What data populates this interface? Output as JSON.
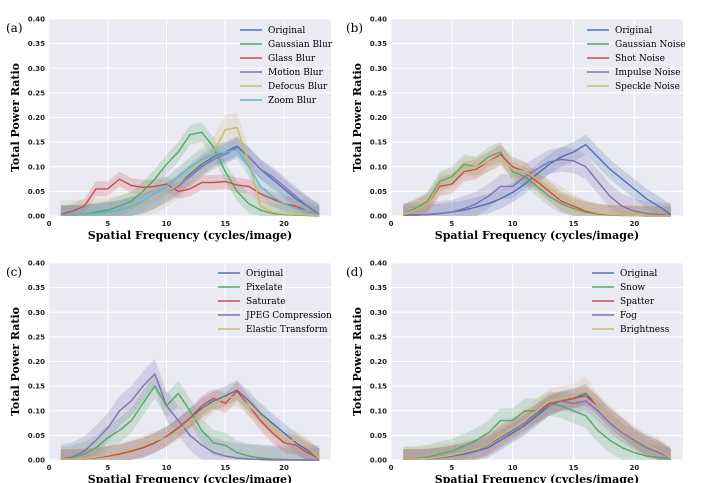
{
  "colors": {
    "blue": "#4C72B0",
    "green": "#55A868",
    "red": "#C44E52",
    "purple": "#8172B3",
    "gold": "#CCB974",
    "cyan": "#64B5CD",
    "plot_bg": "#EAEAF2",
    "grid": "#FFFFFF"
  },
  "chart_data": [
    {
      "type": "line",
      "panel_label": "(a)",
      "xlabel": "Spatial Frequency (cycles/image)",
      "ylabel": "Total Power Ratio",
      "xlim": [
        0,
        24
      ],
      "ylim": [
        0,
        0.4
      ],
      "xticks": [
        0,
        5,
        10,
        15,
        20
      ],
      "yticks": [
        0.0,
        0.05,
        0.1,
        0.15,
        0.2,
        0.25,
        0.3,
        0.35,
        0.4
      ],
      "grid": true,
      "legend_position": "top-right",
      "x": [
        1,
        2,
        3,
        4,
        5,
        6,
        7,
        8,
        9,
        10,
        11,
        12,
        13,
        14,
        15,
        16,
        17,
        18,
        19,
        20,
        21,
        22,
        23
      ],
      "series": [
        {
          "name": "Original",
          "color": "#4C72B0",
          "band": 0.02,
          "values": [
            0.002,
            0.002,
            0.003,
            0.005,
            0.008,
            0.012,
            0.018,
            0.025,
            0.035,
            0.048,
            0.065,
            0.085,
            0.105,
            0.12,
            0.13,
            0.142,
            0.12,
            0.095,
            0.075,
            0.055,
            0.035,
            0.02,
            0.003
          ]
        },
        {
          "name": "Gaussian Blur",
          "color": "#55A868",
          "band": 0.02,
          "values": [
            0.002,
            0.002,
            0.004,
            0.008,
            0.012,
            0.02,
            0.03,
            0.05,
            0.075,
            0.105,
            0.13,
            0.165,
            0.17,
            0.14,
            0.09,
            0.05,
            0.025,
            0.012,
            0.005,
            0.003,
            0.002,
            0.001,
            0.0
          ]
        },
        {
          "name": "Glass Blur",
          "color": "#C44E52",
          "band": 0.015,
          "values": [
            0.003,
            0.01,
            0.02,
            0.055,
            0.055,
            0.075,
            0.062,
            0.058,
            0.06,
            0.065,
            0.05,
            0.055,
            0.068,
            0.068,
            0.07,
            0.063,
            0.06,
            0.045,
            0.035,
            0.025,
            0.02,
            0.01,
            0.002
          ]
        },
        {
          "name": "Motion Blur",
          "color": "#8172B3",
          "band": 0.02,
          "values": [
            0.002,
            0.002,
            0.003,
            0.005,
            0.008,
            0.012,
            0.018,
            0.025,
            0.035,
            0.048,
            0.06,
            0.08,
            0.1,
            0.115,
            0.125,
            0.14,
            0.12,
            0.095,
            0.08,
            0.06,
            0.04,
            0.02,
            0.003
          ]
        },
        {
          "name": "Defocus Blur",
          "color": "#CCB974",
          "band": 0.03,
          "values": [
            0.002,
            0.002,
            0.003,
            0.005,
            0.008,
            0.012,
            0.018,
            0.025,
            0.035,
            0.048,
            0.065,
            0.09,
            0.11,
            0.13,
            0.175,
            0.18,
            0.11,
            0.02,
            0.008,
            0.004,
            0.003,
            0.002,
            0.001
          ]
        },
        {
          "name": "Zoom Blur",
          "color": "#64B5CD",
          "band": 0.02,
          "values": [
            0.002,
            0.002,
            0.003,
            0.005,
            0.008,
            0.012,
            0.02,
            0.03,
            0.045,
            0.06,
            0.08,
            0.1,
            0.115,
            0.125,
            0.13,
            0.135,
            0.1,
            0.06,
            0.04,
            0.025,
            0.015,
            0.01,
            0.003
          ]
        }
      ]
    },
    {
      "type": "line",
      "panel_label": "(b)",
      "xlabel": "Spatial Frequency (cycles/image)",
      "ylabel": "Total Power Ratio",
      "xlim": [
        0,
        24
      ],
      "ylim": [
        0,
        0.4
      ],
      "xticks": [
        0,
        5,
        10,
        15,
        20
      ],
      "yticks": [
        0.0,
        0.05,
        0.1,
        0.15,
        0.2,
        0.25,
        0.3,
        0.35,
        0.4
      ],
      "grid": true,
      "legend_position": "top-right",
      "x": [
        1,
        2,
        3,
        4,
        5,
        6,
        7,
        8,
        9,
        10,
        11,
        12,
        13,
        14,
        15,
        16,
        17,
        18,
        19,
        20,
        21,
        22,
        23
      ],
      "series": [
        {
          "name": "Original",
          "color": "#4C72B0",
          "band": 0.02,
          "values": [
            0.002,
            0.002,
            0.003,
            0.005,
            0.008,
            0.012,
            0.018,
            0.025,
            0.035,
            0.048,
            0.065,
            0.085,
            0.105,
            0.12,
            0.13,
            0.145,
            0.12,
            0.095,
            0.075,
            0.055,
            0.035,
            0.02,
            0.003
          ]
        },
        {
          "name": "Gaussian Noise",
          "color": "#55A868",
          "band": 0.02,
          "values": [
            0.003,
            0.015,
            0.03,
            0.07,
            0.08,
            0.105,
            0.1,
            0.12,
            0.13,
            0.09,
            0.08,
            0.06,
            0.04,
            0.025,
            0.015,
            0.008,
            0.004,
            0.002,
            0.001,
            0.001,
            0.0,
            0.0,
            0.0
          ]
        },
        {
          "name": "Shot Noise",
          "color": "#C44E52",
          "band": 0.02,
          "values": [
            0.003,
            0.012,
            0.025,
            0.06,
            0.065,
            0.09,
            0.095,
            0.11,
            0.125,
            0.1,
            0.09,
            0.07,
            0.05,
            0.03,
            0.02,
            0.01,
            0.005,
            0.003,
            0.002,
            0.001,
            0.0,
            0.0,
            0.0
          ]
        },
        {
          "name": "Impulse Noise",
          "color": "#8172B3",
          "band": 0.025,
          "values": [
            0.002,
            0.002,
            0.003,
            0.005,
            0.008,
            0.015,
            0.025,
            0.04,
            0.06,
            0.06,
            0.08,
            0.095,
            0.11,
            0.115,
            0.112,
            0.1,
            0.07,
            0.04,
            0.02,
            0.01,
            0.005,
            0.003,
            0.001
          ]
        },
        {
          "name": "Speckle Noise",
          "color": "#CCB974",
          "band": 0.02,
          "values": [
            0.003,
            0.012,
            0.025,
            0.065,
            0.075,
            0.1,
            0.1,
            0.11,
            0.12,
            0.095,
            0.09,
            0.075,
            0.055,
            0.04,
            0.025,
            0.012,
            0.006,
            0.003,
            0.002,
            0.001,
            0.0,
            0.0,
            0.0
          ]
        }
      ]
    },
    {
      "type": "line",
      "panel_label": "(c)",
      "xlabel": "Spatial Frequency (cycles/image)",
      "ylabel": "Total Power Ratio",
      "xlim": [
        0,
        24
      ],
      "ylim": [
        0,
        0.4
      ],
      "xticks": [
        0,
        5,
        10,
        15,
        20
      ],
      "yticks": [
        0.0,
        0.05,
        0.1,
        0.15,
        0.2,
        0.25,
        0.3,
        0.35,
        0.4
      ],
      "grid": true,
      "legend_position": "top-right",
      "x": [
        1,
        2,
        3,
        4,
        5,
        6,
        7,
        8,
        9,
        10,
        11,
        12,
        13,
        14,
        15,
        16,
        17,
        18,
        19,
        20,
        21,
        22,
        23
      ],
      "series": [
        {
          "name": "Original",
          "color": "#4C72B0",
          "band": 0.02,
          "values": [
            0.002,
            0.002,
            0.003,
            0.005,
            0.008,
            0.012,
            0.018,
            0.025,
            0.035,
            0.048,
            0.065,
            0.085,
            0.105,
            0.12,
            0.13,
            0.142,
            0.12,
            0.095,
            0.075,
            0.055,
            0.035,
            0.02,
            0.003
          ]
        },
        {
          "name": "Pixelate",
          "color": "#55A868",
          "band": 0.025,
          "values": [
            0.002,
            0.005,
            0.012,
            0.025,
            0.045,
            0.06,
            0.08,
            0.115,
            0.15,
            0.11,
            0.135,
            0.1,
            0.06,
            0.035,
            0.03,
            0.015,
            0.008,
            0.004,
            0.002,
            0.001,
            0.0,
            0.0,
            0.0
          ]
        },
        {
          "name": "Saturate",
          "color": "#C44E52",
          "band": 0.02,
          "values": [
            0.002,
            0.002,
            0.003,
            0.005,
            0.008,
            0.012,
            0.018,
            0.025,
            0.035,
            0.048,
            0.065,
            0.085,
            0.11,
            0.125,
            0.115,
            0.14,
            0.11,
            0.08,
            0.055,
            0.035,
            0.03,
            0.015,
            0.003
          ]
        },
        {
          "name": "JPEG Compression",
          "color": "#8172B3",
          "band": 0.03,
          "values": [
            0.002,
            0.006,
            0.018,
            0.04,
            0.065,
            0.1,
            0.12,
            0.15,
            0.175,
            0.11,
            0.08,
            0.05,
            0.03,
            0.015,
            0.008,
            0.004,
            0.002,
            0.001,
            0.0,
            0.0,
            0.0,
            0.0,
            0.0
          ]
        },
        {
          "name": "Elastic Transform",
          "color": "#CCB974",
          "band": 0.02,
          "values": [
            0.002,
            0.002,
            0.003,
            0.006,
            0.01,
            0.015,
            0.022,
            0.03,
            0.04,
            0.045,
            0.06,
            0.075,
            0.095,
            0.115,
            0.125,
            0.13,
            0.11,
            0.09,
            0.065,
            0.04,
            0.04,
            0.025,
            0.003
          ]
        }
      ]
    },
    {
      "type": "line",
      "panel_label": "(d)",
      "xlabel": "Spatial Frequency (cycles/image)",
      "ylabel": "Total Power Ratio",
      "xlim": [
        0,
        24
      ],
      "ylim": [
        0,
        0.4
      ],
      "xticks": [
        0,
        5,
        10,
        15,
        20
      ],
      "yticks": [
        0.0,
        0.05,
        0.1,
        0.15,
        0.2,
        0.25,
        0.3,
        0.35,
        0.4
      ],
      "grid": true,
      "legend_position": "top-right",
      "x": [
        1,
        2,
        3,
        4,
        5,
        6,
        7,
        8,
        9,
        10,
        11,
        12,
        13,
        14,
        15,
        16,
        17,
        18,
        19,
        20,
        21,
        22,
        23
      ],
      "series": [
        {
          "name": "Original",
          "color": "#4C72B0",
          "band": 0.02,
          "values": [
            0.002,
            0.002,
            0.003,
            0.005,
            0.008,
            0.012,
            0.018,
            0.025,
            0.04,
            0.055,
            0.07,
            0.09,
            0.11,
            0.12,
            0.125,
            0.135,
            0.11,
            0.085,
            0.065,
            0.045,
            0.03,
            0.02,
            0.003
          ]
        },
        {
          "name": "Snow",
          "color": "#55A868",
          "band": 0.025,
          "values": [
            0.002,
            0.003,
            0.006,
            0.012,
            0.018,
            0.028,
            0.04,
            0.055,
            0.08,
            0.08,
            0.1,
            0.1,
            0.115,
            0.11,
            0.1,
            0.09,
            0.06,
            0.04,
            0.025,
            0.015,
            0.008,
            0.005,
            0.002
          ]
        },
        {
          "name": "Spatter",
          "color": "#C44E52",
          "band": 0.02,
          "values": [
            0.002,
            0.002,
            0.003,
            0.006,
            0.01,
            0.015,
            0.022,
            0.032,
            0.05,
            0.065,
            0.08,
            0.095,
            0.115,
            0.12,
            0.125,
            0.13,
            0.11,
            0.085,
            0.065,
            0.045,
            0.03,
            0.02,
            0.003
          ]
        },
        {
          "name": "Fog",
          "color": "#8172B3",
          "band": 0.02,
          "values": [
            0.002,
            0.002,
            0.003,
            0.006,
            0.01,
            0.015,
            0.022,
            0.03,
            0.045,
            0.06,
            0.075,
            0.095,
            0.11,
            0.12,
            0.115,
            0.12,
            0.1,
            0.075,
            0.055,
            0.04,
            0.025,
            0.015,
            0.003
          ]
        },
        {
          "name": "Brightness",
          "color": "#CCB974",
          "band": 0.025,
          "values": [
            0.002,
            0.002,
            0.003,
            0.006,
            0.01,
            0.015,
            0.022,
            0.032,
            0.05,
            0.065,
            0.08,
            0.1,
            0.12,
            0.125,
            0.13,
            0.145,
            0.11,
            0.085,
            0.065,
            0.045,
            0.03,
            0.02,
            0.003
          ]
        }
      ]
    }
  ]
}
